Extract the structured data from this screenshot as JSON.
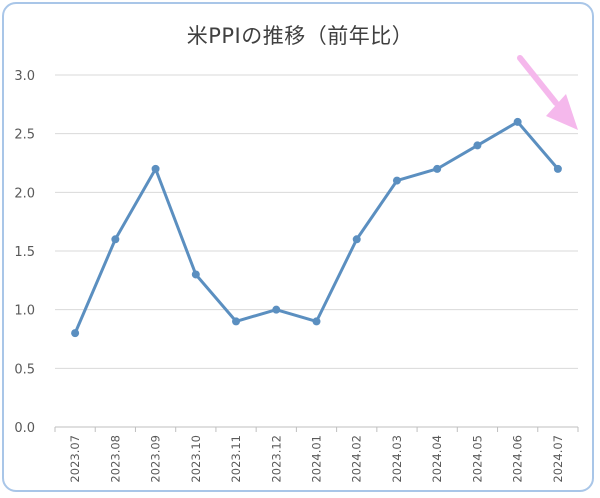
{
  "chart_data": {
    "type": "line",
    "title": "米PPIの推移（前年比）",
    "xlabel": "",
    "ylabel": "",
    "categories": [
      "2023.07",
      "2023.08",
      "2023.09",
      "2023.10",
      "2023.11",
      "2023.12",
      "2024.01",
      "2024.02",
      "2024.03",
      "2024.04",
      "2024.05",
      "2024.06",
      "2024.07"
    ],
    "series": [
      {
        "values": [
          0.8,
          1.6,
          2.2,
          1.3,
          0.9,
          1.0,
          0.9,
          1.6,
          2.1,
          2.2,
          2.4,
          2.6,
          2.2
        ]
      }
    ],
    "ylim": [
      0,
      3
    ],
    "yticks": [
      "0.0",
      "0.5",
      "1.0",
      "1.5",
      "2.0",
      "2.5",
      "3.0"
    ],
    "grid": true,
    "legend": "none",
    "colors": {
      "line": "#5b8fc0",
      "grid": "#d9d9d9",
      "arrow": "#f5b8ec",
      "border": "#a9c6e8"
    },
    "annotations": [
      {
        "kind": "arrow",
        "icon": "pink-down-right-arrow"
      }
    ]
  }
}
